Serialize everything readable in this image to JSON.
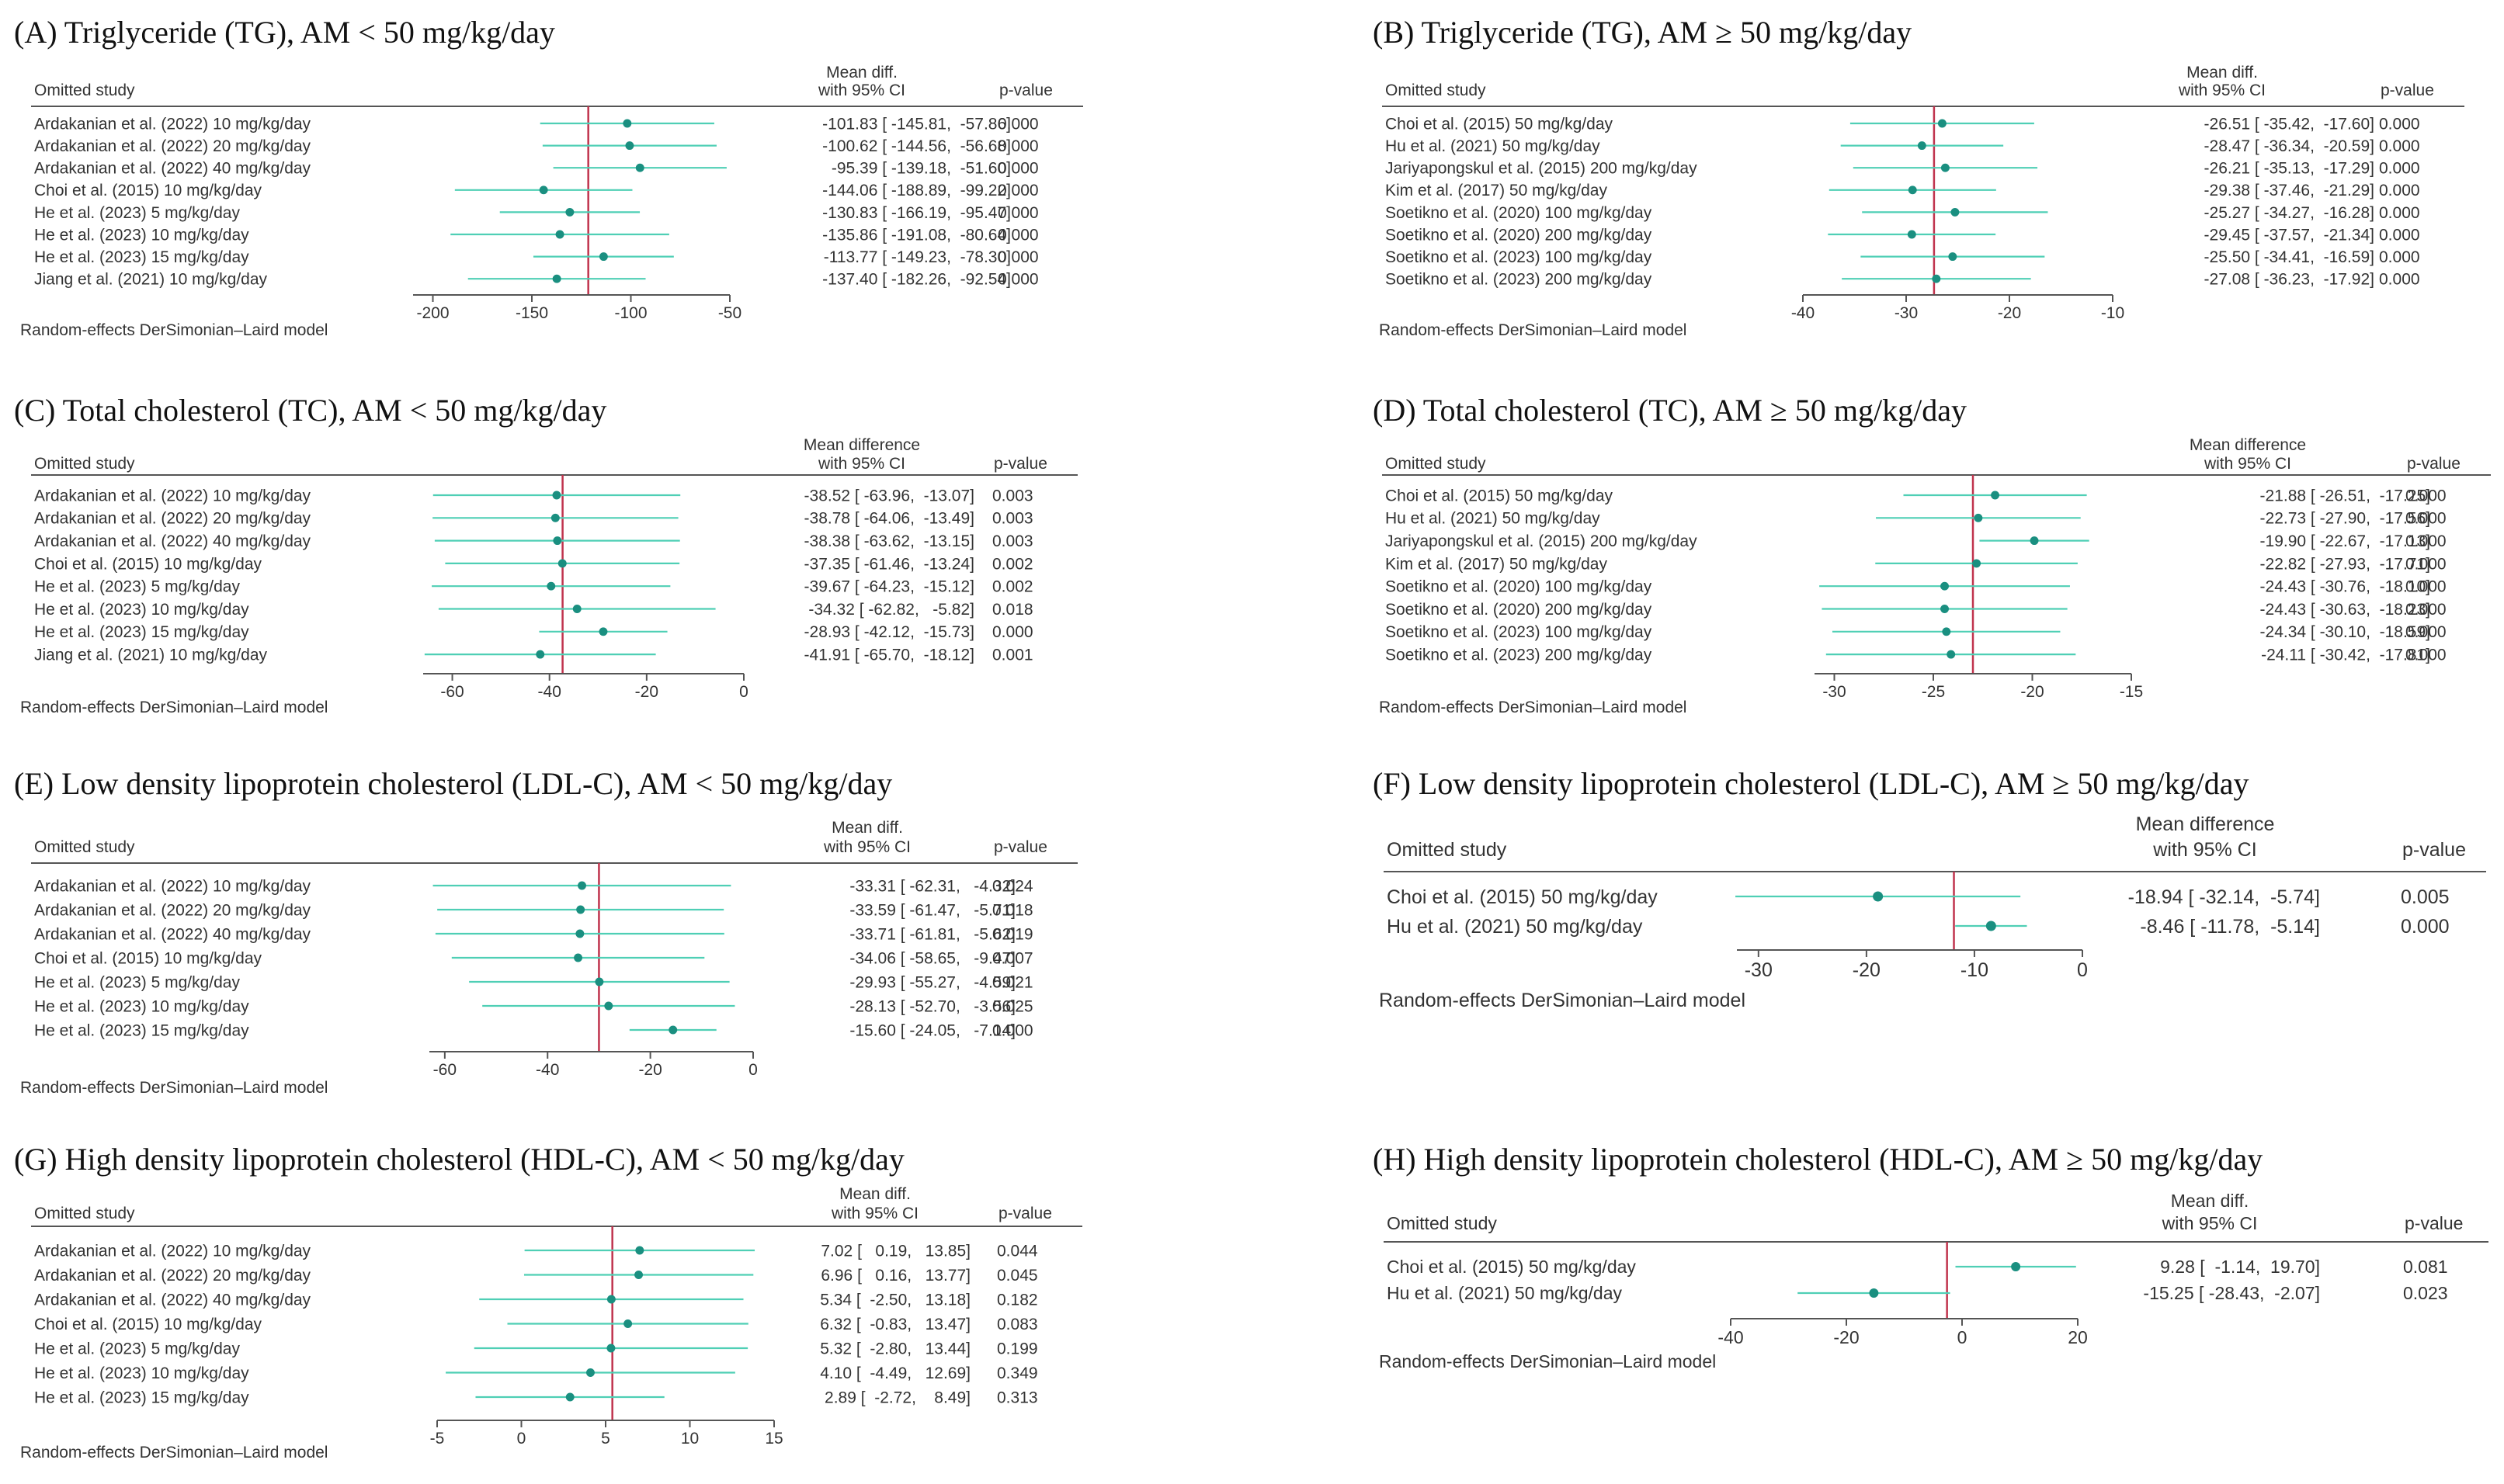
{
  "figure": {
    "model_label": "Random-effects DerSimonian–Laird model",
    "col_study": "Omitted study",
    "col_pvalue": "p-value",
    "ci_color": "#4fcfb5",
    "point_color": "#1a8f80",
    "ref_color": "#c0334d"
  },
  "chart_data": [
    {
      "type": "forest",
      "panel": "A",
      "title": "(A) Triglyceride (TG), AM < 50 mg/kg/day",
      "effect_header_1": "Mean diff.",
      "effect_header_2": "with 95% CI",
      "xlim": [
        -210,
        -50
      ],
      "ticks": [
        -200,
        -150,
        -100,
        -50
      ],
      "tick_labels": [
        "-200",
        "-150",
        "-100",
        "-50"
      ],
      "pooled": -121.5,
      "rows": [
        {
          "study": "Ardakanian et al. (2022) 10 mg/kg/day",
          "est": -101.83,
          "lo": -145.81,
          "hi": -57.86,
          "effect_text": "-101.83 [ -145.81,  -57.86]",
          "p": "0.000"
        },
        {
          "study": "Ardakanian et al. (2022) 20 mg/kg/day",
          "est": -100.62,
          "lo": -144.56,
          "hi": -56.68,
          "effect_text": "-100.62 [ -144.56,  -56.68]",
          "p": "0.000"
        },
        {
          "study": "Ardakanian et al. (2022) 40 mg/kg/day",
          "est": -95.39,
          "lo": -139.18,
          "hi": -51.6,
          "effect_text": "-95.39 [ -139.18,  -51.60]",
          "p": "0.000"
        },
        {
          "study": "Choi et al. (2015) 10 mg/kg/day",
          "est": -144.06,
          "lo": -188.89,
          "hi": -99.22,
          "effect_text": "-144.06 [ -188.89,  -99.22]",
          "p": "0.000"
        },
        {
          "study": "He et al. (2023) 5 mg/kg/day",
          "est": -130.83,
          "lo": -166.19,
          "hi": -95.47,
          "effect_text": "-130.83 [ -166.19,  -95.47]",
          "p": "0.000"
        },
        {
          "study": "He et al. (2023) 10 mg/kg/day",
          "est": -135.86,
          "lo": -191.08,
          "hi": -80.64,
          "effect_text": "-135.86 [ -191.08,  -80.64]",
          "p": "0.000"
        },
        {
          "study": "He et al. (2023) 15 mg/kg/day",
          "est": -113.77,
          "lo": -149.23,
          "hi": -78.3,
          "effect_text": "-113.77 [ -149.23,  -78.30]",
          "p": "0.000"
        },
        {
          "study": "Jiang et al. (2021) 10 mg/kg/day",
          "est": -137.4,
          "lo": -182.26,
          "hi": -92.54,
          "effect_text": "-137.40 [ -182.26,  -92.54]",
          "p": "0.000"
        }
      ]
    },
    {
      "type": "forest",
      "panel": "B",
      "title": "(B) Triglyceride (TG), AM ≥ 50 mg/kg/day",
      "effect_header_1": "Mean diff.",
      "effect_header_2": "with 95% CI",
      "xlim": [
        -40,
        -10
      ],
      "ticks": [
        -40,
        -30,
        -20,
        -10
      ],
      "tick_labels": [
        "-40",
        "-30",
        "-20",
        "-10"
      ],
      "pooled": -27.3,
      "rows": [
        {
          "study": "Choi et al. (2015) 50 mg/kg/day",
          "est": -26.51,
          "lo": -35.42,
          "hi": -17.6,
          "effect_text": "-26.51 [ -35.42,  -17.60]",
          "p": "0.000"
        },
        {
          "study": "Hu et al. (2021) 50 mg/kg/day",
          "est": -28.47,
          "lo": -36.34,
          "hi": -20.59,
          "effect_text": "-28.47 [ -36.34,  -20.59]",
          "p": "0.000"
        },
        {
          "study": "Jariyapongskul et al. (2015) 200 mg/kg/day",
          "est": -26.21,
          "lo": -35.13,
          "hi": -17.29,
          "effect_text": "-26.21 [ -35.13,  -17.29]",
          "p": "0.000"
        },
        {
          "study": "Kim et al. (2017) 50 mg/kg/day",
          "est": -29.38,
          "lo": -37.46,
          "hi": -21.29,
          "effect_text": "-29.38 [ -37.46,  -21.29]",
          "p": "0.000"
        },
        {
          "study": "Soetikno et al. (2020) 100 mg/kg/day",
          "est": -25.27,
          "lo": -34.27,
          "hi": -16.28,
          "effect_text": "-25.27 [ -34.27,  -16.28]",
          "p": "0.000"
        },
        {
          "study": "Soetikno et al. (2020) 200 mg/kg/day",
          "est": -29.45,
          "lo": -37.57,
          "hi": -21.34,
          "effect_text": "-29.45 [ -37.57,  -21.34]",
          "p": "0.000"
        },
        {
          "study": "Soetikno et al. (2023) 100 mg/kg/day",
          "est": -25.5,
          "lo": -34.41,
          "hi": -16.59,
          "effect_text": "-25.50 [ -34.41,  -16.59]",
          "p": "0.000"
        },
        {
          "study": "Soetikno et al. (2023) 200 mg/kg/day",
          "est": -27.08,
          "lo": -36.23,
          "hi": -17.92,
          "effect_text": "-27.08 [ -36.23,  -17.92]",
          "p": "0.000"
        }
      ]
    },
    {
      "type": "forest",
      "panel": "C",
      "title": "(C) Total cholesterol (TC), AM < 50 mg/kg/day",
      "effect_header_1": "Mean difference",
      "effect_header_2": "with 95% CI",
      "xlim": [
        -66,
        0
      ],
      "ticks": [
        -60,
        -40,
        -20,
        0
      ],
      "tick_labels": [
        "-60",
        "-40",
        "-20",
        "0"
      ],
      "pooled": -37.3,
      "rows": [
        {
          "study": "Ardakanian et al. (2022) 10 mg/kg/day",
          "est": -38.52,
          "lo": -63.96,
          "hi": -13.07,
          "effect_text": "-38.52 [ -63.96,  -13.07]",
          "p": "0.003"
        },
        {
          "study": "Ardakanian et al. (2022) 20 mg/kg/day",
          "est": -38.78,
          "lo": -64.06,
          "hi": -13.49,
          "effect_text": "-38.78 [ -64.06,  -13.49]",
          "p": "0.003"
        },
        {
          "study": "Ardakanian et al. (2022) 40 mg/kg/day",
          "est": -38.38,
          "lo": -63.62,
          "hi": -13.15,
          "effect_text": "-38.38 [ -63.62,  -13.15]",
          "p": "0.003"
        },
        {
          "study": "Choi et al. (2015) 10 mg/kg/day",
          "est": -37.35,
          "lo": -61.46,
          "hi": -13.24,
          "effect_text": "-37.35 [ -61.46,  -13.24]",
          "p": "0.002"
        },
        {
          "study": "He et al. (2023) 5 mg/kg/day",
          "est": -39.67,
          "lo": -64.23,
          "hi": -15.12,
          "effect_text": "-39.67 [ -64.23,  -15.12]",
          "p": "0.002"
        },
        {
          "study": "He et al. (2023) 10 mg/kg/day",
          "est": -34.32,
          "lo": -62.82,
          "hi": -5.82,
          "effect_text": "-34.32 [ -62.82,   -5.82]",
          "p": "0.018"
        },
        {
          "study": "He et al. (2023) 15 mg/kg/day",
          "est": -28.93,
          "lo": -42.12,
          "hi": -15.73,
          "effect_text": "-28.93 [ -42.12,  -15.73]",
          "p": "0.000"
        },
        {
          "study": "Jiang et al. (2021) 10 mg/kg/day",
          "est": -41.91,
          "lo": -65.7,
          "hi": -18.12,
          "effect_text": "-41.91 [ -65.70,  -18.12]",
          "p": "0.001"
        }
      ]
    },
    {
      "type": "forest",
      "panel": "D",
      "title": "(D) Total cholesterol (TC), AM ≥ 50 mg/kg/day",
      "effect_header_1": "Mean difference",
      "effect_header_2": "with 95% CI",
      "xlim": [
        -31,
        -15
      ],
      "ticks": [
        -30,
        -25,
        -20,
        -15
      ],
      "tick_labels": [
        "-30",
        "-25",
        "-20",
        "-15"
      ],
      "pooled": -23.0,
      "rows": [
        {
          "study": "Choi et al. (2015) 50 mg/kg/day",
          "est": -21.88,
          "lo": -26.51,
          "hi": -17.25,
          "effect_text": "-21.88 [ -26.51,  -17.25]",
          "p": "0.000"
        },
        {
          "study": "Hu et al. (2021) 50 mg/kg/day",
          "est": -22.73,
          "lo": -27.9,
          "hi": -17.56,
          "effect_text": "-22.73 [ -27.90,  -17.56]",
          "p": "0.000"
        },
        {
          "study": "Jariyapongskul et al. (2015) 200 mg/kg/day",
          "est": -19.9,
          "lo": -22.67,
          "hi": -17.13,
          "effect_text": "-19.90 [ -22.67,  -17.13]",
          "p": "0.000"
        },
        {
          "study": "Kim et al. (2017) 50 mg/kg/day",
          "est": -22.82,
          "lo": -27.93,
          "hi": -17.71,
          "effect_text": "-22.82 [ -27.93,  -17.71]",
          "p": "0.000"
        },
        {
          "study": "Soetikno et al. (2020) 100 mg/kg/day",
          "est": -24.43,
          "lo": -30.76,
          "hi": -18.1,
          "effect_text": "-24.43 [ -30.76,  -18.10]",
          "p": "0.000"
        },
        {
          "study": "Soetikno et al. (2020) 200 mg/kg/day",
          "est": -24.43,
          "lo": -30.63,
          "hi": -18.23,
          "effect_text": "-24.43 [ -30.63,  -18.23]",
          "p": "0.000"
        },
        {
          "study": "Soetikno et al. (2023) 100 mg/kg/day",
          "est": -24.34,
          "lo": -30.1,
          "hi": -18.59,
          "effect_text": "-24.34 [ -30.10,  -18.59]",
          "p": "0.000"
        },
        {
          "study": "Soetikno et al. (2023) 200 mg/kg/day",
          "est": -24.11,
          "lo": -30.42,
          "hi": -17.81,
          "effect_text": "-24.11 [ -30.42,  -17.81]",
          "p": "0.000"
        }
      ]
    },
    {
      "type": "forest",
      "panel": "E",
      "title": "(E) Low density lipoprotein cholesterol (LDL-C), AM < 50 mg/kg/day",
      "effect_header_1": "Mean diff.",
      "effect_header_2": "with 95% CI",
      "xlim": [
        -63,
        0
      ],
      "ticks": [
        -60,
        -40,
        -20,
        0
      ],
      "tick_labels": [
        "-60",
        "-40",
        "-20",
        "0"
      ],
      "pooled": -30.0,
      "rows": [
        {
          "study": "Ardakanian et al. (2022) 10 mg/kg/day",
          "est": -33.31,
          "lo": -62.31,
          "hi": -4.32,
          "effect_text": "-33.31 [ -62.31,   -4.32]",
          "p": "0.024"
        },
        {
          "study": "Ardakanian et al. (2022) 20 mg/kg/day",
          "est": -33.59,
          "lo": -61.47,
          "hi": -5.71,
          "effect_text": "-33.59 [ -61.47,   -5.71]",
          "p": "0.018"
        },
        {
          "study": "Ardakanian et al. (2022) 40 mg/kg/day",
          "est": -33.71,
          "lo": -61.81,
          "hi": -5.62,
          "effect_text": "-33.71 [ -61.81,   -5.62]",
          "p": "0.019"
        },
        {
          "study": "Choi et al. (2015) 10 mg/kg/day",
          "est": -34.06,
          "lo": -58.65,
          "hi": -9.47,
          "effect_text": "-34.06 [ -58.65,   -9.47]",
          "p": "0.007"
        },
        {
          "study": "He et al. (2023) 5 mg/kg/day",
          "est": -29.93,
          "lo": -55.27,
          "hi": -4.59,
          "effect_text": "-29.93 [ -55.27,   -4.59]",
          "p": "0.021"
        },
        {
          "study": "He et al. (2023) 10 mg/kg/day",
          "est": -28.13,
          "lo": -52.7,
          "hi": -3.56,
          "effect_text": "-28.13 [ -52.70,   -3.56]",
          "p": "0.025"
        },
        {
          "study": "He et al. (2023) 15 mg/kg/day",
          "est": -15.6,
          "lo": -24.05,
          "hi": -7.14,
          "effect_text": "-15.60 [ -24.05,   -7.14]",
          "p": "0.000"
        }
      ]
    },
    {
      "type": "forest",
      "panel": "F",
      "title": "(F) Low density lipoprotein cholesterol (LDL-C), AM  ≥ 50 mg/kg/day",
      "effect_header_1": "Mean difference",
      "effect_header_2": "with 95% CI",
      "xlim": [
        -32,
        0
      ],
      "ticks": [
        -30,
        -20,
        -10,
        0
      ],
      "tick_labels": [
        "-30",
        "-20",
        "-10",
        "0"
      ],
      "pooled": -11.9,
      "rows": [
        {
          "study": "Choi et al. (2015) 50 mg/kg/day",
          "est": -18.94,
          "lo": -32.14,
          "hi": -5.74,
          "effect_text": "-18.94 [ -32.14,  -5.74]",
          "p": "0.005"
        },
        {
          "study": "Hu et al. (2021) 50 mg/kg/day",
          "est": -8.46,
          "lo": -11.78,
          "hi": -5.14,
          "effect_text": "-8.46 [ -11.78,  -5.14]",
          "p": "0.000"
        }
      ]
    },
    {
      "type": "forest",
      "panel": "G",
      "title": "(G) High density lipoprotein cholesterol (HDL-C), AM < 50 mg/kg/day",
      "effect_header_1": "Mean diff.",
      "effect_header_2": "with 95% CI",
      "xlim": [
        -5,
        15
      ],
      "ticks": [
        -5,
        0,
        5,
        10,
        15
      ],
      "tick_labels": [
        "-5",
        "0",
        "5",
        "10",
        "15"
      ],
      "pooled": 5.4,
      "rows": [
        {
          "study": "Ardakanian et al. (2022) 10 mg/kg/day",
          "est": 7.02,
          "lo": 0.19,
          "hi": 13.85,
          "effect_text": "7.02 [   0.19,   13.85]",
          "p": "0.044"
        },
        {
          "study": "Ardakanian et al. (2022) 20 mg/kg/day",
          "est": 6.96,
          "lo": 0.16,
          "hi": 13.77,
          "effect_text": "6.96 [   0.16,   13.77]",
          "p": "0.045"
        },
        {
          "study": "Ardakanian et al. (2022) 40 mg/kg/day",
          "est": 5.34,
          "lo": -2.5,
          "hi": 13.18,
          "effect_text": "5.34 [  -2.50,   13.18]",
          "p": "0.182"
        },
        {
          "study": "Choi et al. (2015) 10 mg/kg/day",
          "est": 6.32,
          "lo": -0.83,
          "hi": 13.47,
          "effect_text": "6.32 [  -0.83,   13.47]",
          "p": "0.083"
        },
        {
          "study": "He et al. (2023) 5 mg/kg/day",
          "est": 5.32,
          "lo": -2.8,
          "hi": 13.44,
          "effect_text": "5.32 [  -2.80,   13.44]",
          "p": "0.199"
        },
        {
          "study": "He et al. (2023) 10 mg/kg/day",
          "est": 4.1,
          "lo": -4.49,
          "hi": 12.69,
          "effect_text": "4.10 [  -4.49,   12.69]",
          "p": "0.349"
        },
        {
          "study": "He et al. (2023) 15 mg/kg/day",
          "est": 2.89,
          "lo": -2.72,
          "hi": 8.49,
          "effect_text": "2.89 [  -2.72,    8.49]",
          "p": "0.313"
        }
      ]
    },
    {
      "type": "forest",
      "panel": "H",
      "title": "(H) High density lipoprotein cholesterol (HDL-C), AM ≥ 50 mg/kg/day",
      "effect_header_1": "Mean diff.",
      "effect_header_2": "with 95% CI",
      "xlim": [
        -40,
        20
      ],
      "ticks": [
        -40,
        -20,
        0,
        20
      ],
      "tick_labels": [
        "-40",
        "-20",
        "0",
        "20"
      ],
      "pooled": -2.6,
      "rows": [
        {
          "study": "Choi et al. (2015) 50 mg/kg/day",
          "est": 9.28,
          "lo": -1.14,
          "hi": 19.7,
          "effect_text": "9.28 [  -1.14,  19.70]",
          "p": "0.081"
        },
        {
          "study": "Hu et al. (2021) 50 mg/kg/day",
          "est": -15.25,
          "lo": -28.43,
          "hi": -2.07,
          "effect_text": "-15.25 [ -28.43,  -2.07]",
          "p": "0.023"
        }
      ]
    }
  ]
}
